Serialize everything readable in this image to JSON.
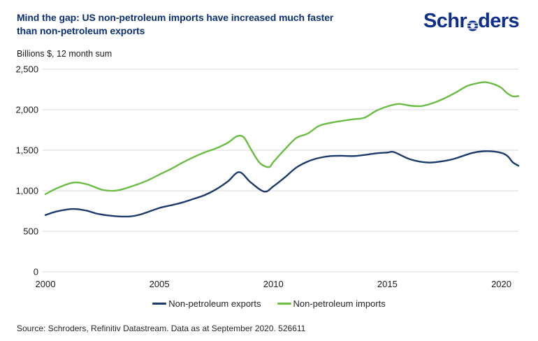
{
  "header": {
    "title_line1": "Mind the gap: US non-petroleum imports have increased much faster",
    "title_line2": "than non-petroleum exports",
    "logo_part1": "Schr",
    "logo_part2": "ders",
    "logo_text": "Schroders"
  },
  "colors": {
    "title": "#0C3070",
    "logo": "#0E308A",
    "grid": "#D9D9D9",
    "axis_text": "#1A1A1A",
    "body_text": "#262626"
  },
  "chart_data": {
    "type": "line",
    "title": "Mind the gap: US non-petroleum imports have increased much faster than non-petroleum exports",
    "unit_label": "Billions $, 12 month sum",
    "xlabel": "",
    "ylabel": "Billions $, 12 month sum",
    "ylim": [
      0,
      2500
    ],
    "yticks": [
      0,
      500,
      1000,
      1500,
      2000,
      2500
    ],
    "ytick_labels": [
      "0",
      "500",
      "1,000",
      "1,500",
      "2,000",
      "2,500"
    ],
    "x_range": [
      2000,
      2020.75
    ],
    "xticks": [
      2000,
      2005,
      2010,
      2015,
      2020
    ],
    "grid": "horizontal",
    "legend_position": "bottom-center",
    "series": [
      {
        "name": "Non-petroleum exports",
        "color": "#1C3B6A",
        "x": [
          2000.0,
          2000.5,
          2001.2,
          2001.8,
          2002.3,
          2003.0,
          2003.7,
          2004.2,
          2005.0,
          2005.5,
          2006.0,
          2006.5,
          2007.0,
          2007.5,
          2008.0,
          2008.5,
          2009.0,
          2009.6,
          2010.0,
          2010.5,
          2011.0,
          2011.5,
          2012.0,
          2012.5,
          2013.0,
          2013.5,
          2014.0,
          2014.5,
          2015.0,
          2015.3,
          2016.0,
          2016.8,
          2017.5,
          2018.0,
          2018.7,
          2019.2,
          2019.7,
          2020.1,
          2020.3,
          2020.5,
          2020.75
        ],
        "values": [
          700,
          745,
          775,
          755,
          715,
          688,
          683,
          710,
          788,
          820,
          855,
          900,
          948,
          1020,
          1115,
          1230,
          1105,
          990,
          1055,
          1165,
          1285,
          1360,
          1405,
          1428,
          1432,
          1428,
          1442,
          1462,
          1472,
          1476,
          1388,
          1348,
          1368,
          1400,
          1465,
          1487,
          1483,
          1458,
          1420,
          1352,
          1308
        ]
      },
      {
        "name": "Non-petroleum imports",
        "color": "#6CBD45",
        "x": [
          2000.0,
          2000.5,
          2001.2,
          2001.8,
          2002.5,
          2003.0,
          2003.4,
          2004.0,
          2004.5,
          2005.0,
          2005.5,
          2006.0,
          2006.5,
          2007.0,
          2007.5,
          2008.0,
          2008.4,
          2008.7,
          2009.0,
          2009.4,
          2009.8,
          2010.0,
          2010.5,
          2011.0,
          2011.5,
          2012.0,
          2012.5,
          2013.0,
          2013.5,
          2014.0,
          2014.5,
          2015.0,
          2015.5,
          2016.0,
          2016.5,
          2017.0,
          2017.5,
          2018.0,
          2018.5,
          2019.0,
          2019.3,
          2019.7,
          2020.0,
          2020.25,
          2020.5,
          2020.75
        ],
        "values": [
          958,
          1030,
          1100,
          1082,
          1012,
          1000,
          1020,
          1075,
          1130,
          1200,
          1268,
          1345,
          1415,
          1475,
          1525,
          1592,
          1672,
          1660,
          1520,
          1345,
          1292,
          1355,
          1510,
          1650,
          1705,
          1800,
          1838,
          1862,
          1882,
          1902,
          1985,
          2040,
          2072,
          2050,
          2045,
          2082,
          2140,
          2212,
          2292,
          2330,
          2340,
          2312,
          2270,
          2205,
          2165,
          2168
        ]
      }
    ]
  },
  "footer": {
    "source": "Source: Schroders, Refinitiv Datastream. Data as at September 2020. 526611"
  }
}
